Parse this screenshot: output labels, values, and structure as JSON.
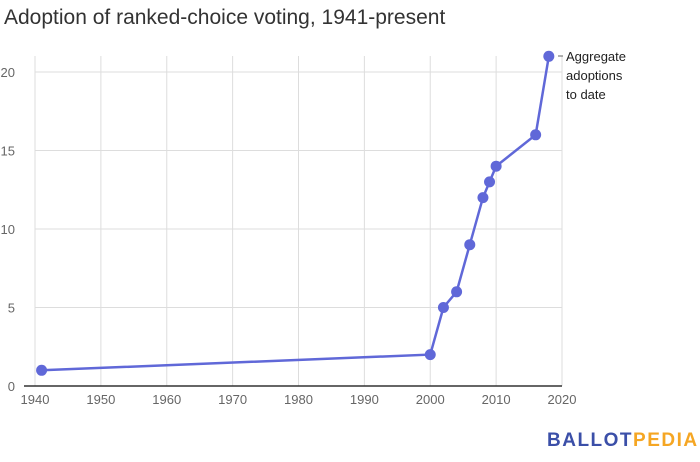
{
  "chart_data": {
    "type": "line",
    "title": "Adoption of ranked-choice voting, 1941-present",
    "xlabel": "",
    "ylabel": "",
    "xlim": [
      1940,
      2020
    ],
    "ylim": [
      0,
      21
    ],
    "xticks": [
      1940,
      1950,
      1960,
      1970,
      1980,
      1990,
      2000,
      2010,
      2020
    ],
    "yticks": [
      0,
      5,
      10,
      15,
      20
    ],
    "grid": true,
    "series": [
      {
        "name": "Aggregate adoptions to date",
        "color": "#6068d8",
        "x": [
          1941,
          2000,
          2002,
          2004,
          2006,
          2008,
          2009,
          2010,
          2016,
          2018
        ],
        "y": [
          1,
          2,
          5,
          6,
          9,
          12,
          13,
          14,
          16,
          21
        ]
      }
    ],
    "annotation": [
      "Aggregate",
      "adoptions",
      "to date"
    ]
  },
  "logo": {
    "part1": "BALLOT",
    "part2": "PEDIA"
  }
}
